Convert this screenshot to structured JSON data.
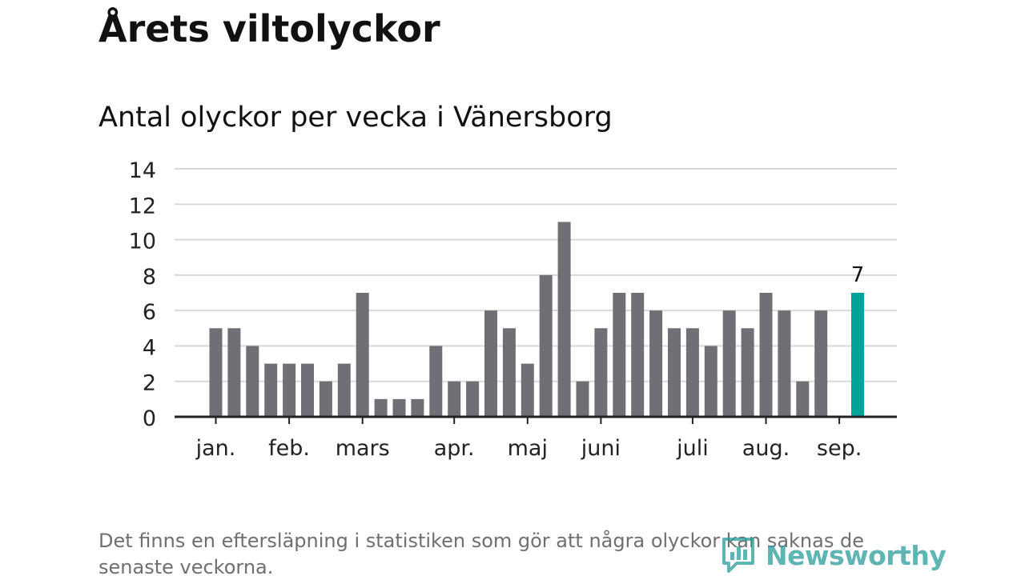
{
  "header": {
    "title": "Årets viltolyckor",
    "subtitle": "Antal olyckor per vecka i Vänersborg"
  },
  "footer": {
    "note": "Det finns en eftersläpning i statistiken som gör att några olyckor kan saknas de senaste veckorna.",
    "logo_text": "Newsworthy"
  },
  "colors": {
    "bar": "#706f76",
    "highlight": "#00a49a",
    "grid": "#d9d9d9",
    "axis": "#222222",
    "logo": "#2a9d9a"
  },
  "chart_data": {
    "type": "bar",
    "title": "Årets viltolyckor",
    "subtitle": "Antal olyckor per vecka i Vänersborg",
    "xlabel": "",
    "ylabel": "",
    "ylim": [
      0,
      14
    ],
    "yticks": [
      0,
      2,
      4,
      6,
      8,
      10,
      12,
      14
    ],
    "grid": true,
    "weeks": [
      1,
      2,
      3,
      4,
      5,
      6,
      7,
      8,
      9,
      10,
      11,
      12,
      13,
      14,
      15,
      16,
      17,
      18,
      19,
      20,
      21,
      22,
      23,
      24,
      25,
      26,
      27,
      28,
      29,
      30,
      31,
      32,
      33,
      34,
      35,
      36
    ],
    "values": [
      5,
      5,
      4,
      3,
      3,
      3,
      2,
      3,
      7,
      1,
      1,
      1,
      4,
      2,
      2,
      6,
      5,
      3,
      8,
      11,
      2,
      5,
      7,
      7,
      6,
      5,
      5,
      4,
      6,
      5,
      7,
      6,
      2,
      6,
      null,
      7
    ],
    "highlight_index": 35,
    "highlight_label": "7",
    "month_labels": [
      {
        "label": "jan.",
        "week": 1
      },
      {
        "label": "feb.",
        "week": 5
      },
      {
        "label": "mars",
        "week": 9
      },
      {
        "label": "apr.",
        "week": 14
      },
      {
        "label": "maj",
        "week": 18
      },
      {
        "label": "juni",
        "week": 22
      },
      {
        "label": "juli",
        "week": 27
      },
      {
        "label": "aug.",
        "week": 31
      },
      {
        "label": "sep.",
        "week": 35
      }
    ]
  }
}
